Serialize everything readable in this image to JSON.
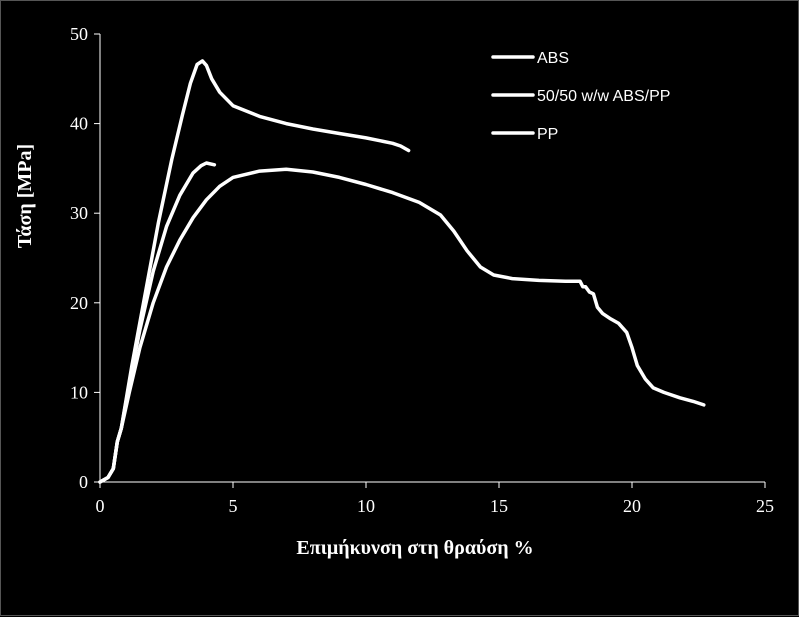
{
  "chart_data": {
    "type": "line",
    "title": "",
    "xlabel": "Επιμήκυνση στη θραύση %",
    "ylabel": "Τάση [MPa]",
    "xlim": [
      0,
      25
    ],
    "ylim": [
      0,
      50
    ],
    "x_ticks": [
      0,
      5,
      10,
      15,
      20,
      25
    ],
    "y_ticks": [
      0,
      10,
      20,
      30,
      40,
      50
    ],
    "grid": false,
    "legend_position": "top-right",
    "colors": {
      "background": "#000000",
      "foreground": "#ffffff"
    },
    "series": [
      {
        "name": "ABS",
        "points": [
          [
            0,
            0
          ],
          [
            0.3,
            0.5
          ],
          [
            0.5,
            1.5
          ],
          [
            0.65,
            4.5
          ],
          [
            0.8,
            6
          ],
          [
            1.2,
            13
          ],
          [
            1.7,
            21
          ],
          [
            2.2,
            29
          ],
          [
            2.7,
            36
          ],
          [
            3.1,
            41
          ],
          [
            3.4,
            44.5
          ],
          [
            3.65,
            46.6
          ],
          [
            3.85,
            47
          ],
          [
            4.0,
            46.5
          ],
          [
            4.2,
            45
          ],
          [
            4.5,
            43.5
          ],
          [
            5.0,
            42
          ],
          [
            6.0,
            40.8
          ],
          [
            7.0,
            40
          ],
          [
            8.0,
            39.4
          ],
          [
            9.0,
            38.9
          ],
          [
            10.0,
            38.4
          ],
          [
            11.0,
            37.8
          ],
          [
            11.3,
            37.5
          ],
          [
            11.6,
            37
          ]
        ]
      },
      {
        "name": "50/50 w/w ABS/PP",
        "points": [
          [
            0,
            0
          ],
          [
            0.3,
            0.5
          ],
          [
            0.5,
            1.5
          ],
          [
            0.65,
            4.5
          ],
          [
            0.8,
            6
          ],
          [
            1.1,
            11
          ],
          [
            1.5,
            17
          ],
          [
            2.0,
            23.5
          ],
          [
            2.5,
            28.5
          ],
          [
            3.0,
            32
          ],
          [
            3.5,
            34.5
          ],
          [
            3.8,
            35.3
          ],
          [
            4.0,
            35.6
          ],
          [
            4.3,
            35.4
          ]
        ]
      },
      {
        "name": "PP",
        "points": [
          [
            0,
            0
          ],
          [
            0.3,
            0.5
          ],
          [
            0.5,
            1.5
          ],
          [
            0.65,
            4.5
          ],
          [
            0.8,
            6
          ],
          [
            1.1,
            10
          ],
          [
            1.5,
            15
          ],
          [
            2.0,
            20
          ],
          [
            2.5,
            24
          ],
          [
            3.0,
            27
          ],
          [
            3.5,
            29.5
          ],
          [
            4.0,
            31.5
          ],
          [
            4.5,
            33
          ],
          [
            5.0,
            34
          ],
          [
            6.0,
            34.7
          ],
          [
            7.0,
            34.9
          ],
          [
            8.0,
            34.6
          ],
          [
            9.0,
            34
          ],
          [
            10.0,
            33.2
          ],
          [
            11.0,
            32.3
          ],
          [
            12.0,
            31.2
          ],
          [
            12.8,
            29.8
          ],
          [
            13.3,
            28
          ],
          [
            13.8,
            25.8
          ],
          [
            14.3,
            24
          ],
          [
            14.8,
            23.1
          ],
          [
            15.5,
            22.7
          ],
          [
            16.5,
            22.5
          ],
          [
            17.5,
            22.4
          ],
          [
            18.05,
            22.4
          ],
          [
            18.15,
            21.8
          ],
          [
            18.25,
            21.8
          ],
          [
            18.4,
            21.2
          ],
          [
            18.55,
            21
          ],
          [
            18.7,
            19.5
          ],
          [
            18.9,
            18.8
          ],
          [
            19.2,
            18.2
          ],
          [
            19.5,
            17.7
          ],
          [
            19.8,
            16.7
          ],
          [
            20.0,
            15
          ],
          [
            20.2,
            13
          ],
          [
            20.5,
            11.5
          ],
          [
            20.8,
            10.5
          ],
          [
            21.2,
            10
          ],
          [
            21.8,
            9.4
          ],
          [
            22.3,
            9
          ],
          [
            22.7,
            8.6
          ]
        ]
      }
    ]
  }
}
